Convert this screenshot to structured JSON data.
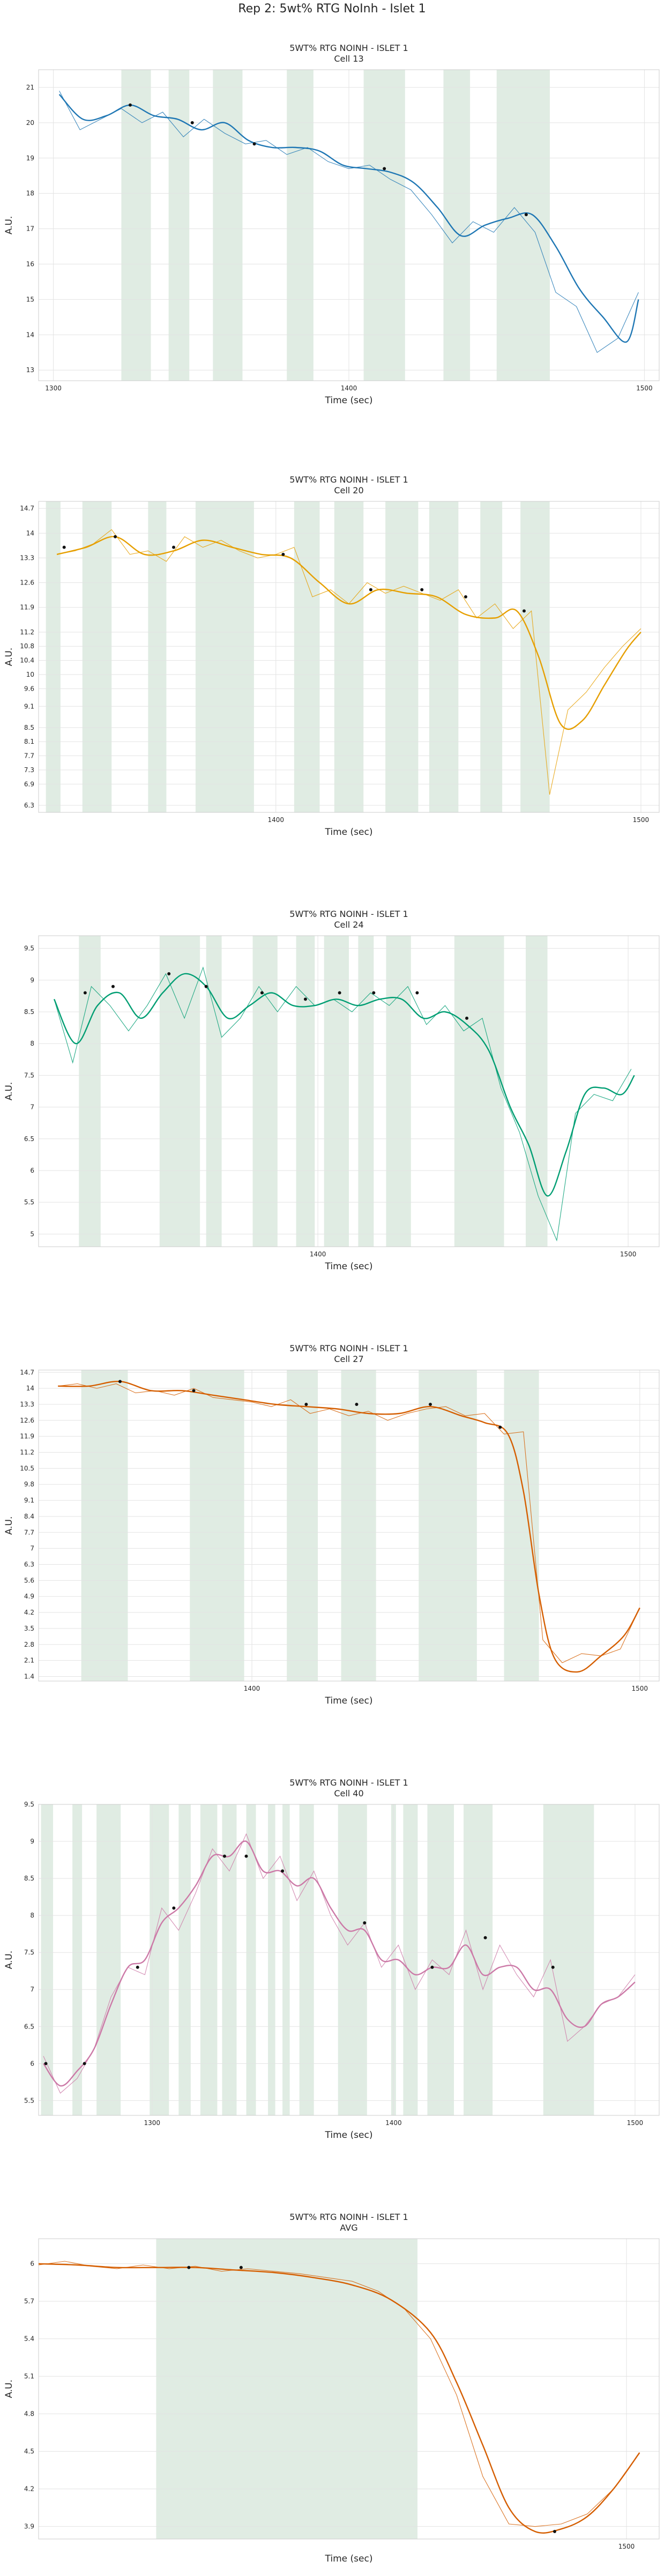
{
  "figure": {
    "title": "Rep 2: 5wt% RTG NoInh - Islet 1"
  },
  "colors": {
    "band": "#d6e6d9",
    "grid": "#e3e3e3",
    "frame": "#cccccc",
    "peak_marker": "#111111"
  },
  "chart_data": [
    {
      "type": "line",
      "title": "5WT% RTG NOINH - ISLET 1",
      "subtitle": "Cell 13",
      "xlabel": "Time (sec)",
      "ylabel": "A.U.",
      "color": "#1f77b4",
      "xlim": [
        1295,
        1505
      ],
      "ylim": [
        12.7,
        21.5
      ],
      "xticks": [
        1300,
        1400,
        1500
      ],
      "yticks": [
        13,
        14,
        15,
        16,
        17,
        18,
        19,
        20,
        21
      ],
      "raw_x": [
        1302,
        1309,
        1316,
        1323,
        1330,
        1337,
        1344,
        1351,
        1358,
        1365,
        1372,
        1379,
        1386,
        1393,
        1400,
        1407,
        1414,
        1421,
        1428,
        1435,
        1442,
        1449,
        1456,
        1463,
        1470,
        1477,
        1484,
        1491,
        1498
      ],
      "raw_y": [
        20.9,
        19.8,
        20.1,
        20.4,
        20.0,
        20.3,
        19.6,
        20.1,
        19.7,
        19.4,
        19.5,
        19.1,
        19.3,
        18.9,
        18.7,
        18.8,
        18.4,
        18.1,
        17.4,
        16.6,
        17.2,
        16.9,
        17.6,
        16.9,
        15.2,
        14.8,
        13.5,
        13.9,
        15.2
      ],
      "smooth_x": [
        1302,
        1310,
        1318,
        1326,
        1334,
        1342,
        1350,
        1358,
        1366,
        1374,
        1382,
        1390,
        1398,
        1406,
        1414,
        1422,
        1430,
        1438,
        1446,
        1454,
        1462,
        1470,
        1478,
        1486,
        1494,
        1498
      ],
      "smooth_y": [
        20.8,
        20.1,
        20.2,
        20.5,
        20.2,
        20.1,
        19.8,
        20.0,
        19.5,
        19.3,
        19.3,
        19.2,
        18.8,
        18.7,
        18.6,
        18.3,
        17.6,
        16.8,
        17.1,
        17.3,
        17.4,
        16.5,
        15.3,
        14.5,
        13.8,
        15.0
      ],
      "peaks_x": [
        1326,
        1347,
        1368,
        1412,
        1460
      ],
      "peaks_y": [
        20.5,
        20.0,
        19.4,
        18.7,
        17.4
      ],
      "bands": [
        [
          1323,
          1333
        ],
        [
          1339,
          1346
        ],
        [
          1354,
          1364
        ],
        [
          1379,
          1388
        ],
        [
          1405,
          1419
        ],
        [
          1432,
          1441
        ],
        [
          1450,
          1468
        ]
      ]
    },
    {
      "type": "line",
      "title": "5WT% RTG NOINH - ISLET 1",
      "subtitle": "Cell 20",
      "xlabel": "Time (sec)",
      "ylabel": "A.U.",
      "color": "#e69f00",
      "xlim": [
        1335,
        1505
      ],
      "ylim": [
        6.1,
        14.9
      ],
      "xticks": [
        1400,
        1500
      ],
      "yticks": [
        6.3,
        6.9,
        7.3,
        7.7,
        8.1,
        8.5,
        9.1,
        9.6,
        10.0,
        10.4,
        10.8,
        11.2,
        11.9,
        12.6,
        13.3,
        14.0,
        14.7
      ],
      "raw_x": [
        1340,
        1345,
        1350,
        1355,
        1360,
        1365,
        1370,
        1375,
        1380,
        1385,
        1390,
        1395,
        1400,
        1405,
        1410,
        1415,
        1420,
        1425,
        1430,
        1435,
        1440,
        1445,
        1450,
        1455,
        1460,
        1465,
        1470,
        1475,
        1480,
        1485,
        1490,
        1495,
        1500
      ],
      "raw_y": [
        13.4,
        13.5,
        13.7,
        14.1,
        13.4,
        13.5,
        13.2,
        13.9,
        13.6,
        13.8,
        13.5,
        13.3,
        13.4,
        13.6,
        12.2,
        12.4,
        12.0,
        12.6,
        12.3,
        12.5,
        12.3,
        12.1,
        12.4,
        11.6,
        12.0,
        11.3,
        11.8,
        6.6,
        9.0,
        9.5,
        10.2,
        10.8,
        11.3
      ],
      "smooth_x": [
        1340,
        1348,
        1356,
        1364,
        1372,
        1380,
        1388,
        1396,
        1404,
        1412,
        1420,
        1428,
        1436,
        1444,
        1452,
        1460,
        1466,
        1472,
        1478,
        1484,
        1490,
        1496,
        1500
      ],
      "smooth_y": [
        13.4,
        13.6,
        13.9,
        13.4,
        13.5,
        13.8,
        13.6,
        13.4,
        13.3,
        12.6,
        12.0,
        12.4,
        12.3,
        12.2,
        11.7,
        11.6,
        11.8,
        10.5,
        8.6,
        8.7,
        9.7,
        10.7,
        11.2
      ],
      "peaks_x": [
        1342,
        1356,
        1372,
        1402,
        1426,
        1440,
        1452,
        1468
      ],
      "peaks_y": [
        13.6,
        13.9,
        13.6,
        13.4,
        12.4,
        12.4,
        12.2,
        11.8
      ],
      "bands": [
        [
          1337,
          1341
        ],
        [
          1347,
          1355
        ],
        [
          1365,
          1370
        ],
        [
          1378,
          1394
        ],
        [
          1405,
          1412
        ],
        [
          1416,
          1424
        ],
        [
          1430,
          1439
        ],
        [
          1442,
          1450
        ],
        [
          1456,
          1462
        ],
        [
          1467,
          1475
        ]
      ]
    },
    {
      "type": "line",
      "title": "5WT% RTG NOINH - ISLET 1",
      "subtitle": "Cell 24",
      "xlabel": "Time (sec)",
      "ylabel": "A.U.",
      "color": "#009e73",
      "xlim": [
        1310,
        1510
      ],
      "ylim": [
        4.8,
        9.7
      ],
      "xticks": [
        1400,
        1500
      ],
      "yticks": [
        5.0,
        5.5,
        6.0,
        6.5,
        7.0,
        7.5,
        8.0,
        8.5,
        9.0,
        9.5
      ],
      "raw_x": [
        1315,
        1321,
        1327,
        1333,
        1339,
        1345,
        1351,
        1357,
        1363,
        1369,
        1375,
        1381,
        1387,
        1393,
        1399,
        1405,
        1411,
        1417,
        1423,
        1429,
        1435,
        1441,
        1447,
        1453,
        1459,
        1465,
        1471,
        1477,
        1483,
        1489,
        1495,
        1501
      ],
      "raw_y": [
        8.7,
        7.7,
        8.9,
        8.6,
        8.2,
        8.6,
        9.1,
        8.4,
        9.2,
        8.1,
        8.4,
        8.9,
        8.5,
        8.9,
        8.6,
        8.7,
        8.5,
        8.8,
        8.6,
        8.9,
        8.3,
        8.6,
        8.2,
        8.4,
        7.3,
        6.6,
        5.6,
        4.9,
        6.9,
        7.2,
        7.1,
        7.6
      ],
      "smooth_x": [
        1315,
        1322,
        1329,
        1336,
        1343,
        1350,
        1357,
        1364,
        1371,
        1378,
        1385,
        1392,
        1399,
        1406,
        1413,
        1420,
        1427,
        1434,
        1441,
        1448,
        1455,
        1462,
        1468,
        1474,
        1480,
        1486,
        1492,
        1498,
        1502
      ],
      "smooth_y": [
        8.7,
        8.0,
        8.6,
        8.8,
        8.4,
        8.8,
        9.1,
        8.9,
        8.4,
        8.6,
        8.8,
        8.6,
        8.6,
        8.7,
        8.6,
        8.7,
        8.7,
        8.4,
        8.5,
        8.3,
        7.9,
        7.0,
        6.4,
        5.6,
        6.3,
        7.2,
        7.3,
        7.2,
        7.5
      ],
      "peaks_x": [
        1325,
        1334,
        1352,
        1364,
        1382,
        1396,
        1407,
        1418,
        1432,
        1448
      ],
      "peaks_y": [
        8.8,
        8.9,
        9.1,
        8.9,
        8.8,
        8.7,
        8.8,
        8.8,
        8.8,
        8.4
      ],
      "bands": [
        [
          1323,
          1330
        ],
        [
          1349,
          1362
        ],
        [
          1364,
          1369
        ],
        [
          1379,
          1387
        ],
        [
          1393,
          1399
        ],
        [
          1402,
          1410
        ],
        [
          1413,
          1418
        ],
        [
          1422,
          1430
        ],
        [
          1444,
          1460
        ],
        [
          1467,
          1474
        ]
      ]
    },
    {
      "type": "line",
      "title": "5WT% RTG NOINH - ISLET 1",
      "subtitle": "Cell 27",
      "xlabel": "Time (sec)",
      "ylabel": "A.U.",
      "color": "#d55e00",
      "xlim": [
        1345,
        1505
      ],
      "ylim": [
        1.2,
        14.8
      ],
      "xticks": [
        1400,
        1500
      ],
      "yticks": [
        1.4,
        2.1,
        2.8,
        3.5,
        4.2,
        4.9,
        5.6,
        6.3,
        7.0,
        7.7,
        8.4,
        9.1,
        9.8,
        10.5,
        11.2,
        11.9,
        12.6,
        13.3,
        14.0,
        14.7
      ],
      "raw_x": [
        1350,
        1355,
        1360,
        1365,
        1370,
        1375,
        1380,
        1385,
        1390,
        1395,
        1400,
        1405,
        1410,
        1415,
        1420,
        1425,
        1430,
        1435,
        1440,
        1445,
        1450,
        1455,
        1460,
        1465,
        1470,
        1475,
        1480,
        1485,
        1490,
        1495,
        1500
      ],
      "raw_y": [
        14.1,
        14.2,
        14.0,
        14.2,
        13.8,
        13.9,
        13.7,
        14.0,
        13.6,
        13.5,
        13.4,
        13.2,
        13.5,
        12.9,
        13.1,
        12.8,
        13.0,
        12.6,
        12.9,
        13.1,
        13.2,
        12.8,
        12.9,
        12.0,
        12.1,
        3.0,
        2.0,
        2.4,
        2.3,
        2.6,
        4.4
      ],
      "smooth_x": [
        1350,
        1358,
        1366,
        1374,
        1382,
        1390,
        1398,
        1406,
        1414,
        1422,
        1430,
        1438,
        1446,
        1454,
        1460,
        1466,
        1470,
        1474,
        1478,
        1484,
        1490,
        1496,
        1500
      ],
      "smooth_y": [
        14.1,
        14.1,
        14.3,
        13.9,
        13.9,
        13.7,
        13.5,
        13.3,
        13.2,
        13.1,
        12.9,
        12.9,
        13.2,
        12.8,
        12.5,
        12.0,
        9.5,
        5.0,
        2.2,
        1.6,
        2.3,
        3.2,
        4.4
      ],
      "peaks_x": [
        1366,
        1385,
        1414,
        1427,
        1446,
        1464
      ],
      "peaks_y": [
        14.3,
        13.9,
        13.3,
        13.3,
        13.3,
        12.3
      ],
      "bands": [
        [
          1356,
          1368
        ],
        [
          1384,
          1398
        ],
        [
          1409,
          1417
        ],
        [
          1423,
          1432
        ],
        [
          1443,
          1458
        ],
        [
          1465,
          1474
        ]
      ]
    },
    {
      "type": "line",
      "title": "5WT% RTG NOINH - ISLET 1",
      "subtitle": "Cell 40",
      "xlabel": "Time (sec)",
      "ylabel": "A.U.",
      "color": "#cc79a7",
      "xlim": [
        1253,
        1510
      ],
      "ylim": [
        5.3,
        9.5
      ],
      "xticks": [
        1300,
        1400,
        1500
      ],
      "yticks": [
        5.5,
        6.0,
        6.5,
        7.0,
        7.5,
        8.0,
        8.5,
        9.0,
        9.5
      ],
      "raw_x": [
        1255,
        1262,
        1269,
        1276,
        1283,
        1290,
        1297,
        1304,
        1311,
        1318,
        1325,
        1332,
        1339,
        1346,
        1353,
        1360,
        1367,
        1374,
        1381,
        1388,
        1395,
        1402,
        1409,
        1416,
        1423,
        1430,
        1437,
        1444,
        1451,
        1458,
        1465,
        1472,
        1479,
        1486,
        1493,
        1500
      ],
      "raw_y": [
        6.1,
        5.6,
        5.8,
        6.2,
        6.9,
        7.3,
        7.2,
        8.1,
        7.8,
        8.3,
        8.9,
        8.6,
        9.1,
        8.5,
        8.8,
        8.2,
        8.6,
        8.0,
        7.6,
        7.9,
        7.3,
        7.6,
        7.0,
        7.4,
        7.2,
        7.8,
        7.0,
        7.6,
        7.2,
        6.9,
        7.4,
        6.3,
        6.5,
        6.8,
        6.9,
        7.2
      ],
      "smooth_x": [
        1255,
        1262,
        1269,
        1276,
        1283,
        1290,
        1297,
        1304,
        1311,
        1318,
        1325,
        1332,
        1339,
        1346,
        1353,
        1360,
        1367,
        1374,
        1381,
        1388,
        1395,
        1402,
        1409,
        1416,
        1423,
        1430,
        1437,
        1444,
        1451,
        1458,
        1465,
        1472,
        1479,
        1486,
        1493,
        1500
      ],
      "smooth_y": [
        6.0,
        5.7,
        5.9,
        6.2,
        6.8,
        7.3,
        7.4,
        7.9,
        8.1,
        8.4,
        8.8,
        8.8,
        9.0,
        8.6,
        8.6,
        8.4,
        8.5,
        8.1,
        7.8,
        7.8,
        7.4,
        7.4,
        7.2,
        7.3,
        7.3,
        7.6,
        7.2,
        7.3,
        7.3,
        7.0,
        7.0,
        6.6,
        6.5,
        6.8,
        6.9,
        7.1
      ],
      "peaks_x": [
        1256,
        1272,
        1294,
        1309,
        1330,
        1339,
        1354,
        1388,
        1416,
        1438,
        1466
      ],
      "peaks_y": [
        6.0,
        6.0,
        7.3,
        8.1,
        8.8,
        8.8,
        8.6,
        7.9,
        7.3,
        7.7,
        7.3
      ],
      "bands": [
        [
          1254,
          1259
        ],
        [
          1267,
          1271
        ],
        [
          1277,
          1287
        ],
        [
          1299,
          1307
        ],
        [
          1311,
          1316
        ],
        [
          1320,
          1327
        ],
        [
          1329,
          1335
        ],
        [
          1339,
          1343
        ],
        [
          1348,
          1351
        ],
        [
          1354,
          1357
        ],
        [
          1361,
          1367
        ],
        [
          1377,
          1389
        ],
        [
          1399,
          1401
        ],
        [
          1404,
          1410
        ],
        [
          1414,
          1425
        ],
        [
          1429,
          1441
        ],
        [
          1462,
          1483
        ]
      ]
    },
    {
      "type": "line",
      "title": "5WT% RTG NOINH - ISLET 1",
      "subtitle": "AVG",
      "xlabel": "Time (sec)",
      "ylabel": "A.U.",
      "color": "#d55e00",
      "xlim": [
        1410,
        1505
      ],
      "ylim": [
        3.8,
        6.2
      ],
      "xticks": [
        1500
      ],
      "yticks": [
        3.9,
        4.2,
        4.5,
        4.8,
        5.1,
        5.4,
        5.7,
        6.0
      ],
      "raw_x": [
        1410,
        1414,
        1418,
        1422,
        1426,
        1430,
        1434,
        1438,
        1442,
        1446,
        1450,
        1454,
        1458,
        1462,
        1466,
        1470,
        1474,
        1478,
        1482,
        1486,
        1490,
        1494,
        1498,
        1502
      ],
      "raw_y": [
        5.99,
        6.02,
        5.98,
        5.96,
        5.99,
        5.96,
        5.98,
        5.94,
        5.96,
        5.94,
        5.92,
        5.89,
        5.86,
        5.78,
        5.64,
        5.4,
        4.95,
        4.3,
        3.92,
        3.9,
        3.92,
        4.0,
        4.2,
        4.49
      ],
      "smooth_x": [
        1410,
        1416,
        1422,
        1428,
        1434,
        1440,
        1446,
        1452,
        1458,
        1464,
        1470,
        1474,
        1478,
        1482,
        1486,
        1490,
        1494,
        1498,
        1502
      ],
      "smooth_y": [
        6.0,
        5.99,
        5.97,
        5.97,
        5.97,
        5.95,
        5.93,
        5.89,
        5.83,
        5.71,
        5.45,
        5.05,
        4.55,
        4.05,
        3.86,
        3.88,
        3.98,
        4.2,
        4.49
      ],
      "peaks_x": [
        1433,
        1441,
        1489
      ],
      "peaks_y": [
        5.97,
        5.97,
        3.86
      ],
      "bands": [
        [
          1428,
          1468
        ]
      ]
    }
  ]
}
